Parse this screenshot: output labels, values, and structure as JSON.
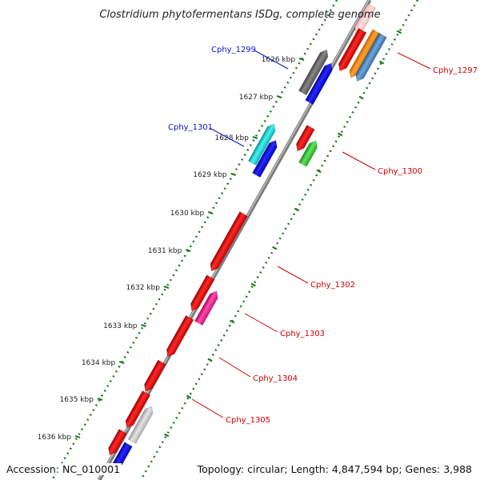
{
  "title": "Clostridium phytofermentans ISDg, complete genome",
  "colors": {
    "backbone": "#8a8a8a",
    "ticks": "#1f7a1f",
    "label_blue": "#1010c8",
    "label_red": "#d00000"
  },
  "kbp_labels": [
    "1626 kbp",
    "1627 kbp",
    "1628 kbp",
    "1629 kbp",
    "1630 kbp",
    "1631 kbp",
    "1632 kbp",
    "1633 kbp",
    "1634 kbp",
    "1635 kbp",
    "1636 kbp"
  ],
  "gene_labels": [
    {
      "id": "cphy_1299",
      "text": "Cphy_1299",
      "color": "blue"
    },
    {
      "id": "cphy_1301",
      "text": "Cphy_1301",
      "color": "blue"
    },
    {
      "id": "cphy_1297",
      "text": "Cphy_1297",
      "color": "red"
    },
    {
      "id": "cphy_1300",
      "text": "Cphy_1300",
      "color": "red"
    },
    {
      "id": "cphy_1302",
      "text": "Cphy_1302",
      "color": "red"
    },
    {
      "id": "cphy_1303",
      "text": "Cphy_1303",
      "color": "red"
    },
    {
      "id": "cphy_1304",
      "text": "Cphy_1304",
      "color": "red"
    },
    {
      "id": "cphy_1305",
      "text": "Cphy_1305",
      "color": "red"
    }
  ],
  "footer": {
    "accession": "Accession: NC_010001",
    "topology": "Topology: circular; Length: 4,847,594 bp; Genes: 3,988"
  }
}
